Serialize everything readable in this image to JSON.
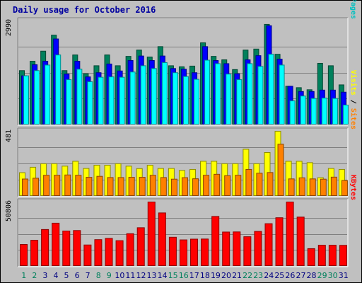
{
  "chart_data": {
    "type": "bar",
    "title": "Daily usage for October 2016",
    "categories": [
      "1",
      "2",
      "3",
      "4",
      "5",
      "6",
      "7",
      "8",
      "9",
      "10",
      "11",
      "12",
      "13",
      "14",
      "15",
      "16",
      "17",
      "18",
      "19",
      "20",
      "21",
      "22",
      "23",
      "24",
      "25",
      "26",
      "27",
      "28",
      "29",
      "30",
      "31"
    ],
    "weekend_days": [
      "1",
      "2",
      "8",
      "9",
      "15",
      "16",
      "22",
      "23",
      "29",
      "30"
    ],
    "colors": {
      "hits": "#00805c",
      "files": "#0000ff",
      "pages": "#00ffff",
      "visits": "#ffff00",
      "sites": "#ff8000",
      "kbytes": "#ff0000",
      "title": "#0000a0",
      "background": "#c0c0c0",
      "weekend_label": "#00805c",
      "weekday_label": "#000080"
    },
    "panels": [
      {
        "name": "hits-files-pages",
        "scale_max": 2990,
        "scale_label": "2990",
        "legend": [
          {
            "text": "Pages",
            "color": "#00c0c0"
          },
          {
            "text": " / ",
            "color": "#000000"
          },
          {
            "text": "Files",
            "color": "#0000ff"
          },
          {
            "text": " / ",
            "color": "#000000"
          },
          {
            "text": "Hits",
            "color": "#00805c"
          }
        ],
        "series": [
          {
            "name": "Hits",
            "key": "hits",
            "values": [
              1560,
              1830,
              2120,
              2580,
              1560,
              2010,
              1470,
              1700,
              2010,
              1700,
              1970,
              2150,
              1950,
              2250,
              1700,
              1670,
              1690,
              2360,
              1970,
              1870,
              1590,
              2150,
              2180,
              2890,
              2030,
              1110,
              1070,
              1010,
              1770,
              1700,
              1150
            ]
          },
          {
            "name": "Files",
            "key": "files",
            "values": [
              1410,
              1730,
              1830,
              2470,
              1460,
              1830,
              1380,
              1500,
              1750,
              1550,
              1850,
              1980,
              1850,
              1980,
              1620,
              1600,
              1500,
              2250,
              1850,
              1760,
              1470,
              1870,
              1990,
              2850,
              1890,
              1110,
              960,
              960,
              1000,
              1000,
              940
            ]
          },
          {
            "name": "Pages",
            "key": "pages",
            "values": [
              1410,
              1560,
              1720,
              2010,
              1300,
              1600,
              1240,
              1370,
              1380,
              1370,
              1520,
              1700,
              1620,
              1790,
              1500,
              1390,
              1310,
              1860,
              1760,
              1460,
              1300,
              1760,
              1680,
              2030,
              1720,
              690,
              830,
              760,
              770,
              760,
              570
            ]
          }
        ]
      },
      {
        "name": "visits-sites",
        "scale_max": 481,
        "scale_label": "481",
        "legend": [
          {
            "text": "Sites",
            "color": "#ff8000"
          },
          {
            "text": " / ",
            "color": "#000000"
          },
          {
            "text": "Visits",
            "color": "#ffff00"
          }
        ],
        "series": [
          {
            "name": "Visits",
            "key": "visits",
            "values": [
              175,
              215,
              241,
              241,
              223,
              259,
              206,
              230,
              230,
              241,
              223,
              205,
              230,
              206,
              206,
              191,
              199,
              259,
              259,
              241,
              241,
              348,
              241,
              324,
              481,
              259,
              259,
              249,
              138,
              206,
              199
            ]
          },
          {
            "name": "Sites",
            "key": "sites",
            "values": [
              128,
              134,
              156,
              156,
              158,
              156,
              141,
              148,
              139,
              139,
              141,
              141,
              156,
              139,
              127,
              138,
              130,
              156,
              163,
              153,
              156,
              199,
              171,
              176,
              385,
              129,
              137,
              129,
              127,
              142,
              117
            ]
          }
        ]
      },
      {
        "name": "kbytes",
        "scale_max": 50806,
        "scale_label": "50806",
        "legend": [
          {
            "text": "KBytes",
            "color": "#ff0000"
          }
        ],
        "series": [
          {
            "name": "KBytes",
            "key": "kbytes",
            "values": [
              17300,
              20600,
              29100,
              34100,
              27900,
              28300,
              16900,
              21100,
              22100,
              20300,
              25800,
              30500,
              50800,
              42200,
              23000,
              20900,
              21500,
              21600,
              39400,
              27100,
              27200,
              23400,
              27600,
              33700,
              38400,
              50800,
              38900,
              14000,
              16700,
              16700,
              16600
            ]
          }
        ]
      }
    ]
  }
}
